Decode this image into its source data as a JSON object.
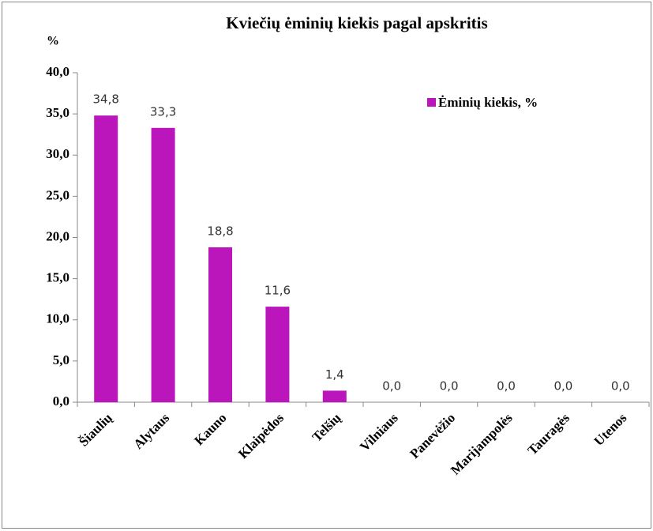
{
  "chart_data": {
    "type": "bar",
    "title": "Kviečių ėminių kiekis pagal apskritis",
    "y_axis_label": "%",
    "categories": [
      "Šiaulių",
      "Alytaus",
      "Kauno",
      "Klaipėdos",
      "Telšių",
      "Vilniaus",
      "Panevėžio",
      "Marijampolės",
      "Tauragės",
      "Utenos"
    ],
    "series": [
      {
        "name": "Ėminių kiekis, %",
        "color": "#bb16bb",
        "values": [
          34.8,
          33.3,
          18.8,
          11.6,
          1.4,
          0,
          0,
          0,
          0,
          0
        ],
        "value_labels": [
          "34,8",
          "33,3",
          "18,8",
          "11,6",
          "1,4",
          "0,0",
          "0,0",
          "0,0",
          "0,0",
          "0,0"
        ]
      }
    ],
    "ylim": [
      0,
      40
    ],
    "yticks": [
      {
        "value": 0,
        "label": "0,0"
      },
      {
        "value": 5,
        "label": "5,0"
      },
      {
        "value": 10,
        "label": "10,0"
      },
      {
        "value": 15,
        "label": "15,0"
      },
      {
        "value": 20,
        "label": "20,0"
      },
      {
        "value": 25,
        "label": "25,0"
      },
      {
        "value": 30,
        "label": "30,0"
      },
      {
        "value": 35,
        "label": "35,0"
      },
      {
        "value": 40,
        "label": "40,0"
      }
    ],
    "legend": "upper right"
  }
}
